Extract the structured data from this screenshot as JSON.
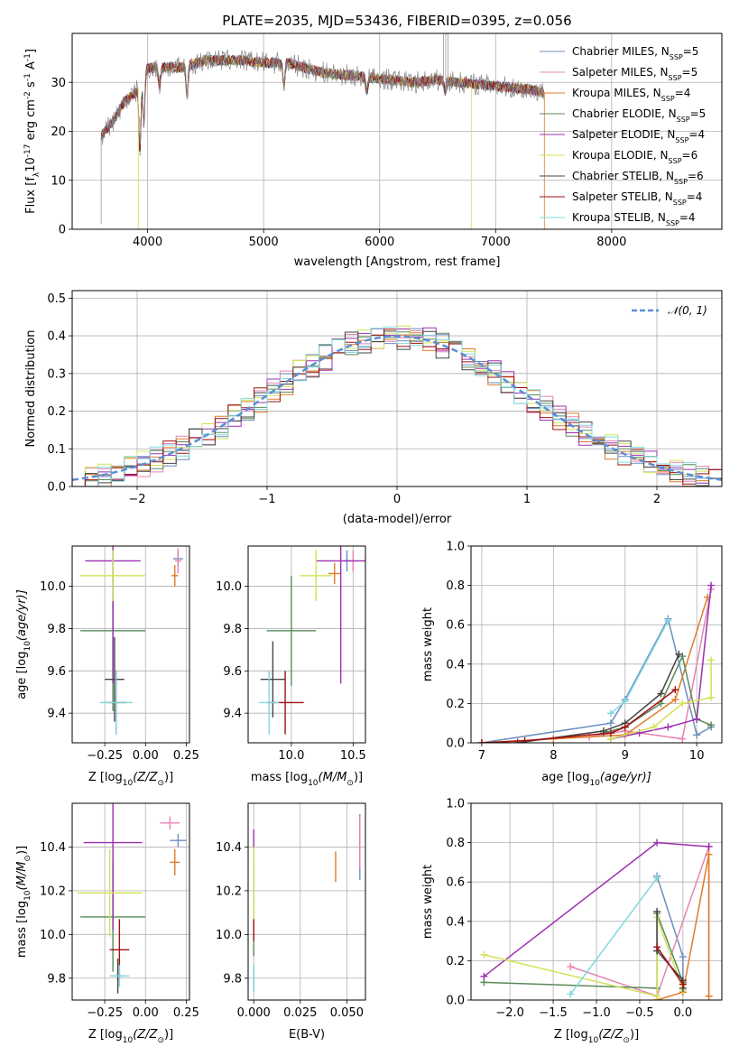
{
  "figure_title": "PLATE=2035, MJD=53436, FIBERID=0395, z=0.056",
  "legend_entries": [
    {
      "label": "Chabrier MILES, N",
      "sub": "SSP",
      "eq": "=5",
      "color": "#6c8ebf"
    },
    {
      "label": "Salpeter MILES, N",
      "sub": "SSP",
      "eq": "=5",
      "color": "#e584b4"
    },
    {
      "label": "Kroupa MILES, N",
      "sub": "SSP",
      "eq": "=4",
      "color": "#e07b28"
    },
    {
      "label": "Chabrier ELODIE, N",
      "sub": "SSP",
      "eq": "=5",
      "color": "#5a8a5a"
    },
    {
      "label": "Salpeter ELODIE, N",
      "sub": "SSP",
      "eq": "=4",
      "color": "#9b30b0"
    },
    {
      "label": "Kroupa ELODIE, N",
      "sub": "SSP",
      "eq": "=6",
      "color": "#d4e157"
    },
    {
      "label": "Chabrier STELIB, N",
      "sub": "SSP",
      "eq": "=6",
      "color": "#444444"
    },
    {
      "label": "Salpeter STELIB, N",
      "sub": "SSP",
      "eq": "=4",
      "color": "#a01010"
    },
    {
      "label": "Kroupa STELIB, N",
      "sub": "SSP",
      "eq": "=4",
      "color": "#7fd8e0"
    }
  ],
  "chart_data": [
    {
      "id": "spectrum",
      "type": "line",
      "xlabel": "wavelength [Angstrom, rest frame]",
      "ylabel": "Flux [f",
      "ylabel_rest": "10",
      "ylabel_exp": "-17",
      "ylabel_tail": " erg cm",
      "ylabel_exp2": "-2",
      "ylabel_tail2": " s",
      "ylabel_exp3": "-1",
      "ylabel_tail3": " A",
      "ylabel_exp4": "-1",
      "ylabel_end": "]",
      "xlim": [
        3350,
        8950
      ],
      "ylim": [
        0,
        40
      ],
      "xticks": [
        "4000",
        "5000",
        "6000",
        "7000",
        "8000"
      ],
      "xtick_values": [
        4000,
        5000,
        6000,
        7000,
        8000
      ],
      "yticks": [
        "0",
        "10",
        "20",
        "30"
      ],
      "ytick_values": [
        0,
        10,
        20,
        30
      ],
      "continuum": [
        [
          3600,
          19
        ],
        [
          3700,
          22
        ],
        [
          3800,
          26
        ],
        [
          3900,
          28
        ],
        [
          4000,
          33
        ],
        [
          4100,
          33
        ],
        [
          4300,
          33
        ],
        [
          4500,
          34.5
        ],
        [
          4800,
          34.5
        ],
        [
          5000,
          34
        ],
        [
          5200,
          34
        ],
        [
          5500,
          32
        ],
        [
          5700,
          31.5
        ],
        [
          5900,
          31
        ],
        [
          6100,
          30.5
        ],
        [
          6300,
          30
        ],
        [
          6500,
          30.5
        ],
        [
          6700,
          30
        ],
        [
          6900,
          29.5
        ],
        [
          7100,
          29
        ],
        [
          7300,
          28.5
        ],
        [
          7400,
          28
        ]
      ]
    },
    {
      "id": "residuals",
      "type": "histogram",
      "xlabel": "(data-model)/error",
      "ylabel": "Normed distribution",
      "xlim": [
        -2.5,
        2.5
      ],
      "ylim": [
        0,
        0.52
      ],
      "xticks": [
        "−2",
        "−1",
        "0",
        "1",
        "2"
      ],
      "xtick_values": [
        -2,
        -1,
        0,
        1,
        2
      ],
      "yticks": [
        "0.0",
        "0.1",
        "0.2",
        "0.3",
        "0.4",
        "0.5"
      ],
      "ytick_values": [
        0,
        0.1,
        0.2,
        0.3,
        0.4,
        0.5
      ],
      "legend_label": "𝒩(0, 1)",
      "gaussian_color": "#5b8ed8"
    },
    {
      "id": "age_vs_Z",
      "type": "scatter",
      "xlabel": "Z [log",
      "xlabel_sub": "10",
      "xlabel_tail": "(Z/Z",
      "xlabel_sub2": "⊙",
      "xlabel_end": ")]",
      "ylabel": "age  [log",
      "ylabel_sub": "10",
      "ylabel_tail": "(age/yr)]",
      "xlim": [
        -0.45,
        0.27
      ],
      "ylim": [
        9.26,
        10.19
      ],
      "xticks": [
        "−0.25",
        "0.00",
        "0.25"
      ],
      "xtick_values": [
        -0.25,
        0,
        0.25
      ],
      "yticks": [
        "9.4",
        "9.6",
        "9.8",
        "10.0"
      ],
      "ytick_values": [
        9.4,
        9.6,
        9.8,
        10.0
      ],
      "points": [
        {
          "x": 0.2,
          "y": 10.13,
          "xerr": 0.03,
          "yerr": 0.04,
          "color": "#6c8ebf"
        },
        {
          "x": 0.2,
          "y": 10.12,
          "xerr": 0.02,
          "yerr": 0.06,
          "color": "#e584b4"
        },
        {
          "x": 0.18,
          "y": 10.05,
          "xerr": 0.02,
          "yerr": 0.05,
          "color": "#e07b28"
        },
        {
          "x": -0.2,
          "y": 9.79,
          "xerr": 0.2,
          "yerr": 0.38,
          "color": "#5a8a5a"
        },
        {
          "x": -0.2,
          "y": 10.12,
          "xerr": 0.17,
          "yerr": 0.58,
          "color": "#9b30b0"
        },
        {
          "x": -0.2,
          "y": 10.05,
          "xerr": 0.2,
          "yerr": 0.12,
          "color": "#d4e157"
        },
        {
          "x": -0.19,
          "y": 9.56,
          "xerr": 0.06,
          "yerr": 0.2,
          "color": "#444444"
        },
        {
          "x": -0.18,
          "y": 9.45,
          "xerr": 0.06,
          "yerr": 0.15,
          "color": "#a01010"
        },
        {
          "x": -0.18,
          "y": 9.45,
          "xerr": 0.1,
          "yerr": 0.15,
          "color": "#7fd8e0"
        }
      ]
    },
    {
      "id": "age_vs_mass",
      "type": "scatter",
      "xlabel": "mass [log",
      "xlabel_sub": "10",
      "xlabel_tail": "(M/M",
      "xlabel_sub2": "⊙",
      "xlabel_end": ")]",
      "xlim": [
        9.65,
        10.6
      ],
      "ylim": [
        9.26,
        10.19
      ],
      "xticks": [
        "10.0",
        "10.5"
      ],
      "xtick_values": [
        10.0,
        10.5
      ],
      "yticks": [
        "9.4",
        "9.6",
        "9.8",
        "10.0"
      ],
      "ytick_values": [
        9.4,
        9.6,
        9.8,
        10.0
      ],
      "points": [
        {
          "x": 10.45,
          "y": 10.12,
          "xerr": 0.02,
          "yerr": 0.05,
          "color": "#6c8ebf"
        },
        {
          "x": 10.5,
          "y": 10.12,
          "xerr": 0.03,
          "yerr": 0.05,
          "color": "#e584b4"
        },
        {
          "x": 10.35,
          "y": 10.06,
          "xerr": 0.05,
          "yerr": 0.05,
          "color": "#e07b28"
        },
        {
          "x": 10.0,
          "y": 9.79,
          "xerr": 0.2,
          "yerr": 0.26,
          "color": "#5a8a5a"
        },
        {
          "x": 10.4,
          "y": 10.12,
          "xerr": 0.2,
          "yerr": 0.58,
          "color": "#9b30b0"
        },
        {
          "x": 10.2,
          "y": 10.05,
          "xerr": 0.13,
          "yerr": 0.12,
          "color": "#d4e157"
        },
        {
          "x": 9.85,
          "y": 9.56,
          "xerr": 0.1,
          "yerr": 0.18,
          "color": "#444444"
        },
        {
          "x": 9.95,
          "y": 9.45,
          "xerr": 0.15,
          "yerr": 0.15,
          "color": "#a01010"
        },
        {
          "x": 9.82,
          "y": 9.45,
          "xerr": 0.08,
          "yerr": 0.15,
          "color": "#7fd8e0"
        }
      ]
    },
    {
      "id": "weight_vs_age",
      "type": "line",
      "xlabel": "age  [log",
      "xlabel_sub": "10",
      "xlabel_tail": "(age/yr)]",
      "ylabel": "mass weight",
      "xlim": [
        6.85,
        10.35
      ],
      "ylim": [
        0,
        1.0
      ],
      "xticks": [
        "7",
        "8",
        "9",
        "10"
      ],
      "xtick_values": [
        7,
        8,
        9,
        10
      ],
      "yticks": [
        "0.0",
        "0.2",
        "0.4",
        "0.6",
        "0.8",
        "1.0"
      ],
      "ytick_values": [
        0,
        0.2,
        0.4,
        0.6,
        0.8,
        1.0
      ],
      "series": [
        {
          "color": "#6c8ebf",
          "x": [
            7.0,
            8.8,
            9.0,
            9.6,
            10.0,
            10.2
          ],
          "y": [
            0.0,
            0.1,
            0.22,
            0.63,
            0.04,
            0.08
          ]
        },
        {
          "color": "#e584b4",
          "x": [
            7.5,
            8.5,
            9.0,
            9.8,
            10.2
          ],
          "y": [
            0.01,
            0.03,
            0.06,
            0.02,
            0.78
          ]
        },
        {
          "color": "#e07b28",
          "x": [
            7.0,
            8.0,
            9.0,
            9.7,
            10.15
          ],
          "y": [
            0.0,
            0.02,
            0.04,
            0.22,
            0.74
          ]
        },
        {
          "color": "#5a8a5a",
          "x": [
            8.7,
            9.0,
            9.5,
            9.8,
            10.0,
            10.2
          ],
          "y": [
            0.05,
            0.08,
            0.2,
            0.44,
            0.12,
            0.09
          ]
        },
        {
          "color": "#9b30b0",
          "x": [
            8.8,
            9.2,
            9.6,
            10.0,
            10.2
          ],
          "y": [
            0.02,
            0.05,
            0.08,
            0.12,
            0.8
          ]
        },
        {
          "color": "#d4e157",
          "x": [
            8.8,
            9.4,
            9.8,
            10.2,
            10.2
          ],
          "y": [
            0.02,
            0.08,
            0.2,
            0.23,
            0.42
          ]
        },
        {
          "color": "#444444",
          "x": [
            7.5,
            8.7,
            9.0,
            9.5,
            9.75
          ],
          "y": [
            0.0,
            0.06,
            0.1,
            0.25,
            0.45
          ]
        },
        {
          "color": "#a01010",
          "x": [
            7.0,
            7.6,
            8.8,
            9.0,
            9.7
          ],
          "y": [
            0.0,
            0.01,
            0.05,
            0.08,
            0.27
          ]
        },
        {
          "color": "#7fd8e0",
          "x": [
            8.8,
            9.0,
            9.6
          ],
          "y": [
            0.15,
            0.21,
            0.62
          ]
        }
      ]
    },
    {
      "id": "mass_vs_Z",
      "type": "scatter",
      "xlabel": "Z [log",
      "xlabel_sub": "10",
      "xlabel_tail": "(Z/Z",
      "xlabel_sub2": "⊙",
      "xlabel_end": ")]",
      "ylabel": "mass [log",
      "ylabel_sub": "10",
      "ylabel_tail": "(M/M",
      "ylabel_sub2": "⊙",
      "ylabel_end": ")]",
      "xlim": [
        -0.45,
        0.27
      ],
      "ylim": [
        9.7,
        10.6
      ],
      "xticks": [
        "−0.25",
        "0.00",
        "0.25"
      ],
      "xtick_values": [
        -0.25,
        0,
        0.25
      ],
      "yticks": [
        "9.8",
        "10.0",
        "10.2",
        "10.4"
      ],
      "ytick_values": [
        9.8,
        10.0,
        10.2,
        10.4
      ],
      "points": [
        {
          "x": 0.2,
          "y": 10.43,
          "xerr": 0.05,
          "yerr": 0.03,
          "color": "#6c8ebf"
        },
        {
          "x": 0.15,
          "y": 10.51,
          "xerr": 0.06,
          "yerr": 0.03,
          "color": "#e584b4"
        },
        {
          "x": 0.18,
          "y": 10.33,
          "xerr": 0.03,
          "yerr": 0.06,
          "color": "#e07b28"
        },
        {
          "x": -0.2,
          "y": 10.08,
          "xerr": 0.2,
          "yerr": 0.25,
          "color": "#5a8a5a"
        },
        {
          "x": -0.2,
          "y": 10.42,
          "xerr": 0.18,
          "yerr": 0.4,
          "color": "#9b30b0"
        },
        {
          "x": -0.22,
          "y": 10.19,
          "xerr": 0.2,
          "yerr": 0.2,
          "color": "#d4e157"
        },
        {
          "x": -0.17,
          "y": 9.81,
          "xerr": 0.04,
          "yerr": 0.08,
          "color": "#444444"
        },
        {
          "x": -0.16,
          "y": 9.93,
          "xerr": 0.06,
          "yerr": 0.14,
          "color": "#a01010"
        },
        {
          "x": -0.16,
          "y": 9.81,
          "xerr": 0.06,
          "yerr": 0.05,
          "color": "#7fd8e0"
        }
      ]
    },
    {
      "id": "mass_vs_ebv",
      "type": "scatter",
      "xlabel": "E(B-V)",
      "xlim": [
        -0.003,
        0.06
      ],
      "ylim": [
        9.7,
        10.6
      ],
      "xticks": [
        "0.000",
        "0.025",
        "0.050"
      ],
      "xtick_values": [
        0,
        0.025,
        0.05
      ],
      "yticks": [
        "9.8",
        "10.0",
        "10.2",
        "10.4"
      ],
      "ytick_values": [
        9.8,
        10.0,
        10.2,
        10.4
      ],
      "points": [
        {
          "x": 0.057,
          "y": 10.4,
          "xerr": 0.0,
          "yerr": 0.15,
          "color": "#6c8ebf"
        },
        {
          "x": 0.057,
          "y": 10.42,
          "xerr": 0.0,
          "yerr": 0.12,
          "color": "#e584b4"
        },
        {
          "x": 0.044,
          "y": 10.31,
          "xerr": 0.0,
          "yerr": 0.07,
          "color": "#e07b28"
        },
        {
          "x": 0.0,
          "y": 10.1,
          "xerr": 0.0,
          "yerr": 0.2,
          "color": "#5a8a5a"
        },
        {
          "x": 0.0,
          "y": 10.3,
          "xerr": 0.0,
          "yerr": 0.18,
          "color": "#9b30b0"
        },
        {
          "x": 0.0,
          "y": 10.2,
          "xerr": 0.0,
          "yerr": 0.2,
          "color": "#d4e157"
        },
        {
          "x": 0.0,
          "y": 9.8,
          "xerr": 0.0,
          "yerr": 0.06,
          "color": "#444444"
        },
        {
          "x": 0.0,
          "y": 10.02,
          "xerr": 0.0,
          "yerr": 0.05,
          "color": "#a01010"
        },
        {
          "x": 0.0,
          "y": 9.8,
          "xerr": 0.0,
          "yerr": 0.06,
          "color": "#7fd8e0"
        }
      ]
    },
    {
      "id": "weight_vs_Z",
      "type": "line",
      "xlabel": "Z [log",
      "xlabel_sub": "10",
      "xlabel_tail": "(Z/Z",
      "xlabel_sub2": "⊙",
      "xlabel_end": ")]",
      "ylabel": "mass weight",
      "xlim": [
        -2.45,
        0.45
      ],
      "ylim": [
        0,
        1.0
      ],
      "xticks": [
        "−2.0",
        "−1.5",
        "−1.0",
        "−0.5",
        "0.0"
      ],
      "xtick_values": [
        -2.0,
        -1.5,
        -1.0,
        -0.5,
        0
      ],
      "yticks": [
        "0.0",
        "0.2",
        "0.4",
        "0.6",
        "0.8",
        "1.0"
      ],
      "ytick_values": [
        0,
        0.2,
        0.4,
        0.6,
        0.8,
        1.0
      ],
      "series": [
        {
          "color": "#6c8ebf",
          "x": [
            -0.3,
            0.0,
            0.0
          ],
          "y": [
            0.63,
            0.22,
            0.04
          ]
        },
        {
          "color": "#e584b4",
          "x": [
            -1.3,
            -0.3,
            0.3,
            0.3
          ],
          "y": [
            0.17,
            0.02,
            0.78,
            0.02
          ]
        },
        {
          "color": "#e07b28",
          "x": [
            -0.3,
            0.0,
            0.3,
            0.3
          ],
          "y": [
            0.0,
            0.04,
            0.74,
            0.02
          ]
        },
        {
          "color": "#5a8a5a",
          "x": [
            -2.3,
            -0.3,
            -0.3,
            0.0
          ],
          "y": [
            0.09,
            0.06,
            0.44,
            0.09
          ]
        },
        {
          "color": "#9b30b0",
          "x": [
            -2.3,
            -0.3,
            0.3
          ],
          "y": [
            0.12,
            0.8,
            0.78
          ]
        },
        {
          "color": "#d4e157",
          "x": [
            -2.3,
            -0.3,
            -0.3,
            0.0
          ],
          "y": [
            0.23,
            0.02,
            0.42,
            0.05
          ]
        },
        {
          "color": "#444444",
          "x": [
            -0.3,
            -0.3,
            0.0,
            0.0
          ],
          "y": [
            0.45,
            0.25,
            0.1,
            0.06
          ]
        },
        {
          "color": "#a01010",
          "x": [
            -0.3,
            0.0
          ],
          "y": [
            0.27,
            0.08
          ]
        },
        {
          "color": "#7fd8e0",
          "x": [
            -1.3,
            -0.3
          ],
          "y": [
            0.03,
            0.62
          ]
        }
      ]
    }
  ]
}
